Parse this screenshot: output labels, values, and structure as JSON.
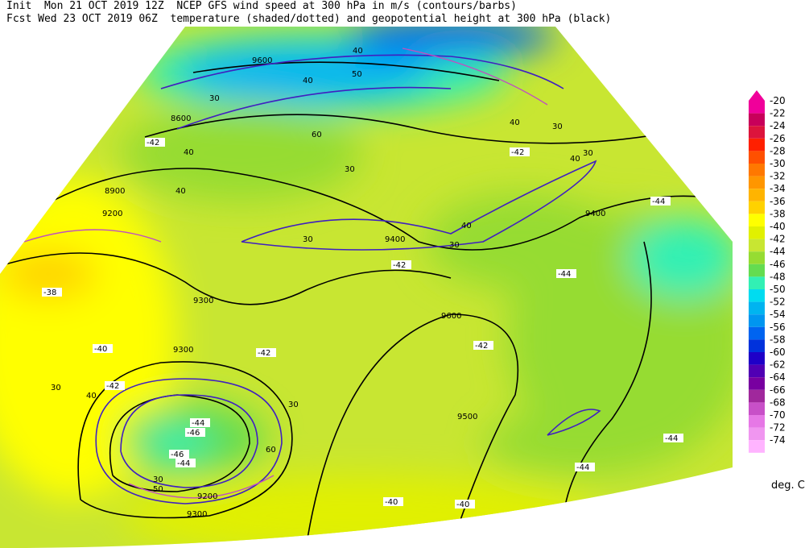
{
  "header": {
    "line1": "Init  Mon 21 OCT 2019 12Z  NCEP GFS wind speed at 300 hPa in m/s (contours/barbs)",
    "line2": "Fcst Wed 23 OCT 2019 06Z  temperature (shaded/dotted) and geopotential height at 300 hPa (black)"
  },
  "legend": {
    "items": [
      {
        "label": -20,
        "color": "#f0009a"
      },
      {
        "label": -22,
        "color": "#c8005a"
      },
      {
        "label": -24,
        "color": "#dc143c"
      },
      {
        "label": -26,
        "color": "#ff2000"
      },
      {
        "label": -28,
        "color": "#ff5000"
      },
      {
        "label": -30,
        "color": "#ff7800"
      },
      {
        "label": -32,
        "color": "#ff9600"
      },
      {
        "label": -34,
        "color": "#ffb400"
      },
      {
        "label": -36,
        "color": "#ffd200"
      },
      {
        "label": -38,
        "color": "#ffff00"
      },
      {
        "label": -40,
        "color": "#e1f000"
      },
      {
        "label": -42,
        "color": "#c8e632"
      },
      {
        "label": -44,
        "color": "#96dc32"
      },
      {
        "label": -46,
        "color": "#64dc50"
      },
      {
        "label": -48,
        "color": "#32f0b4"
      },
      {
        "label": -50,
        "color": "#00dcf0"
      },
      {
        "label": -52,
        "color": "#00b4f0"
      },
      {
        "label": -54,
        "color": "#0096f0"
      },
      {
        "label": -56,
        "color": "#0064f0"
      },
      {
        "label": -58,
        "color": "#0032dc"
      },
      {
        "label": -60,
        "color": "#1e00c8"
      },
      {
        "label": -62,
        "color": "#5000b4"
      },
      {
        "label": -64,
        "color": "#7800a0"
      },
      {
        "label": -66,
        "color": "#a0289c"
      },
      {
        "label": -68,
        "color": "#c850c8"
      },
      {
        "label": -70,
        "color": "#e678e6"
      },
      {
        "label": -72,
        "color": "#f096f0"
      },
      {
        "label": -74,
        "color": "#ffb4ff"
      }
    ],
    "unit": "deg. C"
  },
  "map_labels": [
    "9600",
    "8600",
    "8900",
    "9200",
    "9300",
    "9300",
    "9400",
    "9600",
    "9500",
    "9200",
    "9300",
    "9400",
    "40",
    "40",
    "30",
    "40",
    "40",
    "30",
    "30",
    "40",
    "30",
    "40",
    "30",
    "40",
    "30",
    "50",
    "60",
    "-42",
    "-42",
    "-44",
    "-44",
    "-42",
    "-42",
    "-42",
    "-44",
    "-46",
    "-46",
    "-44",
    "-40",
    "-42",
    "-38",
    "-40",
    "-40",
    "-44",
    "-44",
    "30",
    "40",
    "30",
    "50",
    "60",
    "30"
  ]
}
